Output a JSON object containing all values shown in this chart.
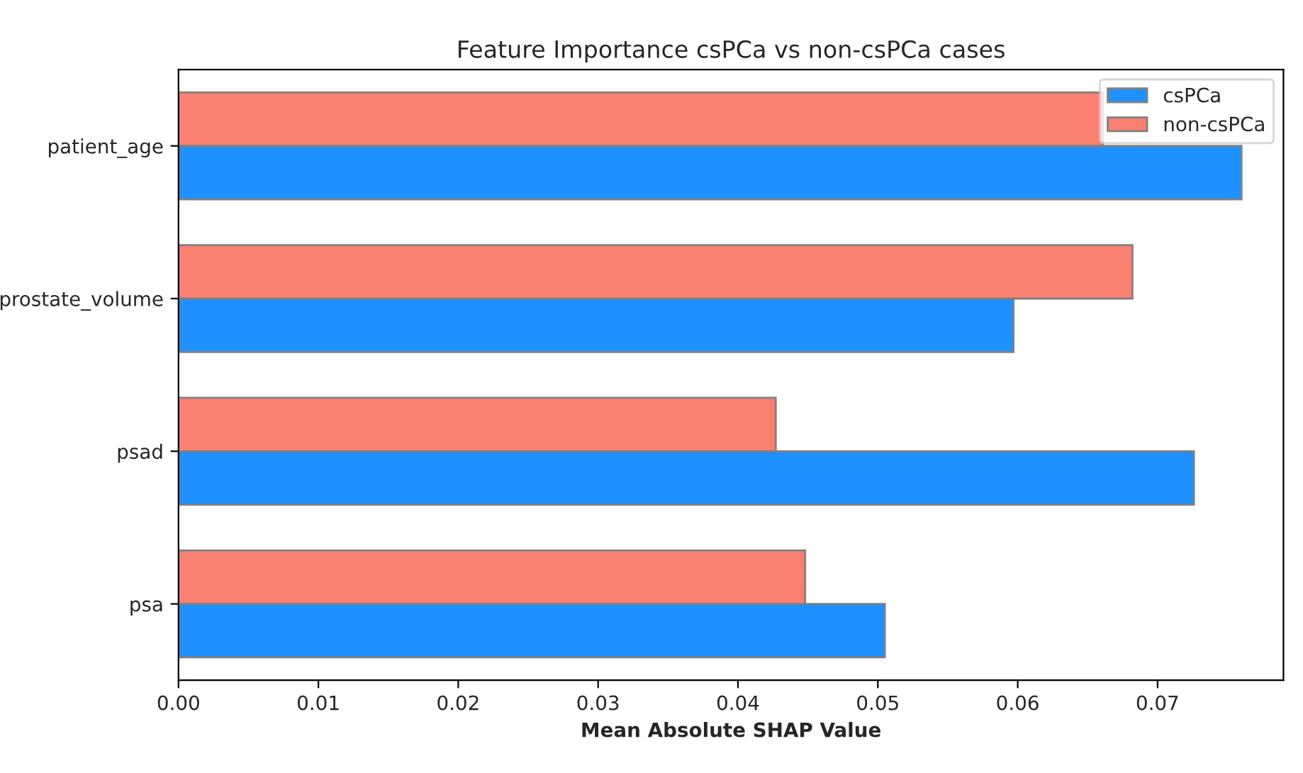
{
  "chart_data": {
    "type": "bar",
    "orientation": "horizontal",
    "title": "Feature Importance csPCa vs non-csPCa cases",
    "xlabel": "Mean Absolute SHAP Value",
    "categories": [
      "patient_age",
      "prostate_volume",
      "psad",
      "psa"
    ],
    "series": [
      {
        "name": "csPCa",
        "color": "#1e90ff",
        "values": [
          0.076,
          0.0597,
          0.0726,
          0.0505
        ]
      },
      {
        "name": "non-csPCa",
        "color": "#fa8072",
        "values": [
          0.0661,
          0.0682,
          0.0427,
          0.0448
        ]
      }
    ],
    "xlim": [
      0,
      0.079
    ],
    "xticks": [
      {
        "value": 0,
        "label": "0.00"
      },
      {
        "value": 0.01,
        "label": "0.01"
      },
      {
        "value": 0.02,
        "label": "0.02"
      },
      {
        "value": 0.03,
        "label": "0.03"
      },
      {
        "value": 0.04,
        "label": "0.04"
      },
      {
        "value": 0.05,
        "label": "0.05"
      },
      {
        "value": 0.06,
        "label": "0.06"
      },
      {
        "value": 0.07,
        "label": "0.07"
      }
    ],
    "grid": false,
    "legend": "top right"
  }
}
